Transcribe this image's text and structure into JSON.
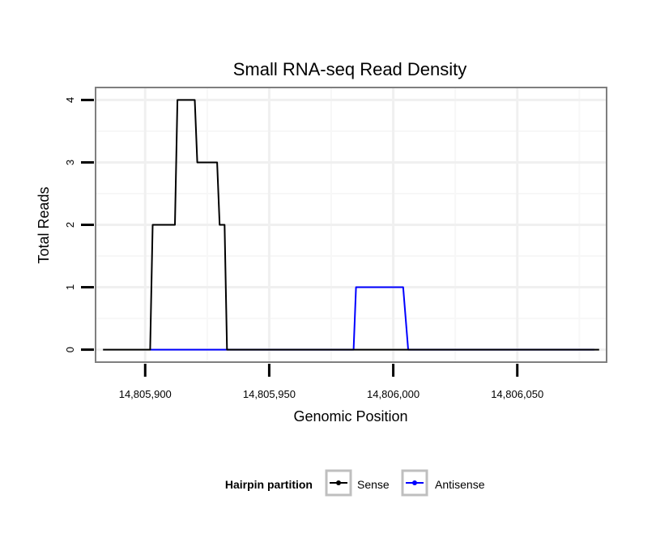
{
  "chart_data": {
    "type": "line",
    "title": "Small RNA-seq Read Density",
    "xlabel": "Genomic Position",
    "ylabel": "Total Reads",
    "xlim": [
      14805880,
      14806086
    ],
    "ylim": [
      -0.2,
      4.2
    ],
    "x_ticks": [
      14805900,
      14805950,
      14806000,
      14806050
    ],
    "x_tick_labels": [
      "14,805,900",
      "14,805,950",
      "14,806,000",
      "14,806,050"
    ],
    "y_ticks": [
      0,
      1,
      2,
      3,
      4
    ],
    "y_tick_labels": [
      "0",
      "1",
      "2",
      "3",
      "4"
    ],
    "grid": true,
    "legend": {
      "title": "Hairpin partition",
      "position": "bottom",
      "entries": [
        "Sense",
        "Antisense"
      ]
    },
    "series": [
      {
        "name": "Sense",
        "color": "#000000",
        "x": [
          14805883,
          14805902,
          14805903,
          14805912,
          14805913,
          14805920,
          14805921,
          14805929,
          14805930,
          14805932,
          14805933,
          14806083
        ],
        "values": [
          0,
          0,
          2,
          2,
          4,
          4,
          3,
          3,
          2,
          2,
          0,
          0
        ]
      },
      {
        "name": "Antisense",
        "color": "#0000ff",
        "x": [
          14805902,
          14805934,
          14805984,
          14805985,
          14806004,
          14806006,
          14806060,
          14806081
        ],
        "values": [
          0,
          0,
          0,
          1,
          1,
          0,
          0,
          0
        ]
      }
    ]
  }
}
